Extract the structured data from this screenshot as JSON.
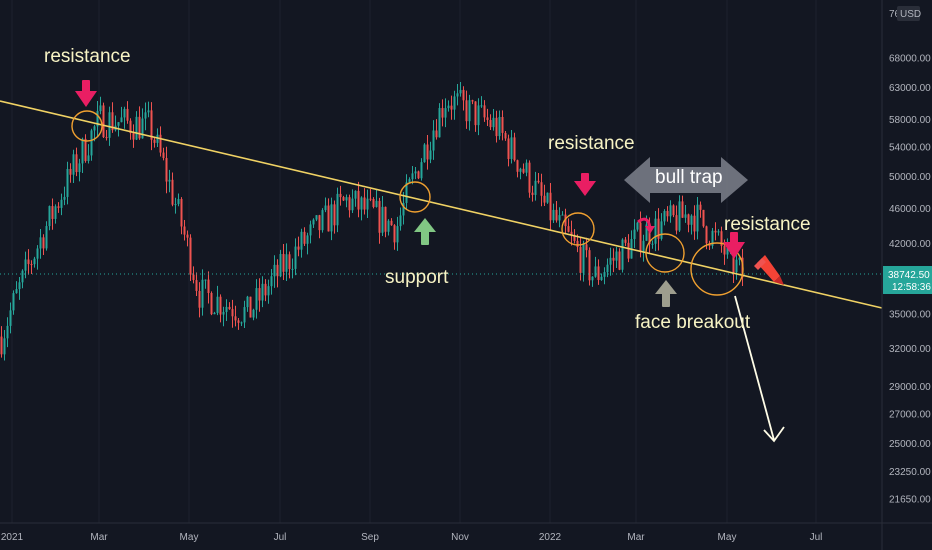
{
  "chart_data": {
    "type": "candlestick",
    "currency_label": "USD",
    "y_ticks": [
      21650,
      23250,
      25000,
      27000,
      29000,
      32000,
      35000,
      38000,
      42000,
      46000,
      50000,
      54000,
      58000,
      63000,
      68000
    ],
    "y_tick_labels": [
      "21650.00",
      "23250.00",
      "25000.00",
      "27000.00",
      "29000.00",
      "32000.00",
      "35000.00",
      "38000.00",
      "42000.00",
      "46000.00",
      "50000.00",
      "54000.00",
      "58000.00",
      "63000.00",
      "68000.00"
    ],
    "y_top_partial": "76",
    "x_ticks": [
      "2021",
      "Mar",
      "May",
      "Jul",
      "Sep",
      "Nov",
      "2022",
      "Mar",
      "May",
      "Jul"
    ],
    "last_price": "38742.50",
    "countdown": "12:58:36",
    "trendline": {
      "from": [
        "2020-12-31",
        60500
      ],
      "to": [
        "2022-06-30",
        36000
      ]
    },
    "series": [
      {
        "date": "2021-01",
        "close": 33000
      },
      {
        "date": "2021-02",
        "close": 45000
      },
      {
        "date": "2021-03",
        "close": 58000
      },
      {
        "date": "2021-04",
        "close": 57000
      },
      {
        "date": "2021-05",
        "close": 37000
      },
      {
        "date": "2021-06",
        "close": 35000
      },
      {
        "date": "2021-07",
        "close": 41500
      },
      {
        "date": "2021-08",
        "close": 47000
      },
      {
        "date": "2021-09",
        "close": 43800
      },
      {
        "date": "2021-10",
        "close": 61300
      },
      {
        "date": "2021-11",
        "close": 57000
      },
      {
        "date": "2021-12",
        "close": 46300
      },
      {
        "date": "2022-01",
        "close": 38500
      },
      {
        "date": "2022-02",
        "close": 43200
      },
      {
        "date": "2022-03",
        "close": 45500
      },
      {
        "date": "2022-04",
        "close": 38700
      }
    ],
    "annotations": [
      {
        "text": "resistance",
        "kind": "label"
      },
      {
        "text": "support",
        "kind": "label"
      },
      {
        "text": "resistance",
        "kind": "label"
      },
      {
        "text": "bull trap",
        "kind": "label"
      },
      {
        "text": "resistance",
        "kind": "label"
      },
      {
        "text": "face breakout",
        "kind": "label"
      }
    ]
  },
  "colors": {
    "background": "#131722",
    "up": "#26a69a",
    "down": "#ef5350",
    "trendline": "#f0d264",
    "circle": "#f0a030",
    "resistance_arrow": "#e91e63",
    "support_arrow": "#81c784",
    "breakout_arrow": "#9e9e8e",
    "projection_arrow": "#fffde7",
    "price_tag": "#26a69a"
  },
  "icons": [
    "down-arrow-icon",
    "up-arrow-icon",
    "double-arrow-icon",
    "pencil-icon",
    "curved-arrow-icon"
  ]
}
